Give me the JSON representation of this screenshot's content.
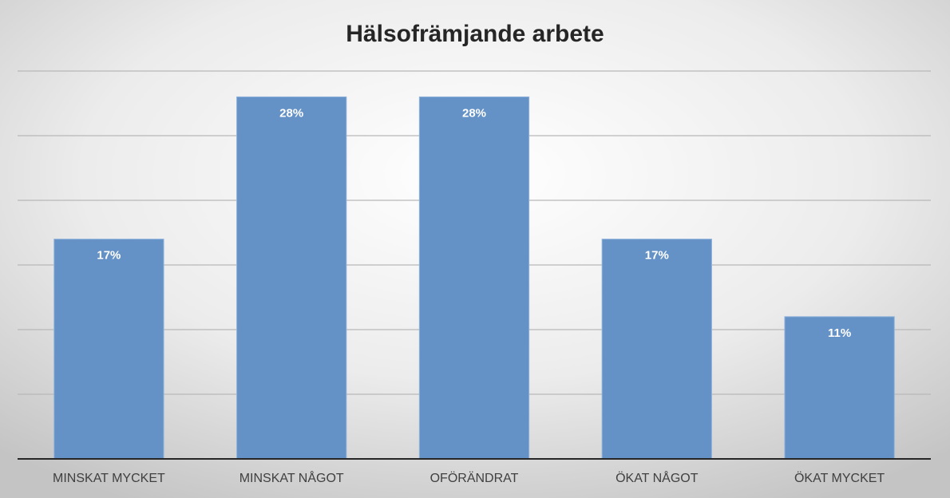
{
  "chart_data": {
    "type": "bar",
    "title": "Hälsofrämjande arbete",
    "categories": [
      "MINSKAT MYCKET",
      "MINSKAT NÅGOT",
      "OFÖRÄNDRAT",
      "ÖKAT NÅGOT",
      "ÖKAT MYCKET"
    ],
    "values": [
      17,
      28,
      28,
      17,
      11
    ],
    "value_labels": [
      "17%",
      "28%",
      "28%",
      "17%",
      "11%"
    ],
    "color": "#6592c6",
    "ylim": [
      0,
      30
    ],
    "yticks": [
      0,
      5,
      10,
      15,
      20,
      25,
      30
    ],
    "grid": true,
    "tick_labels": false
  }
}
